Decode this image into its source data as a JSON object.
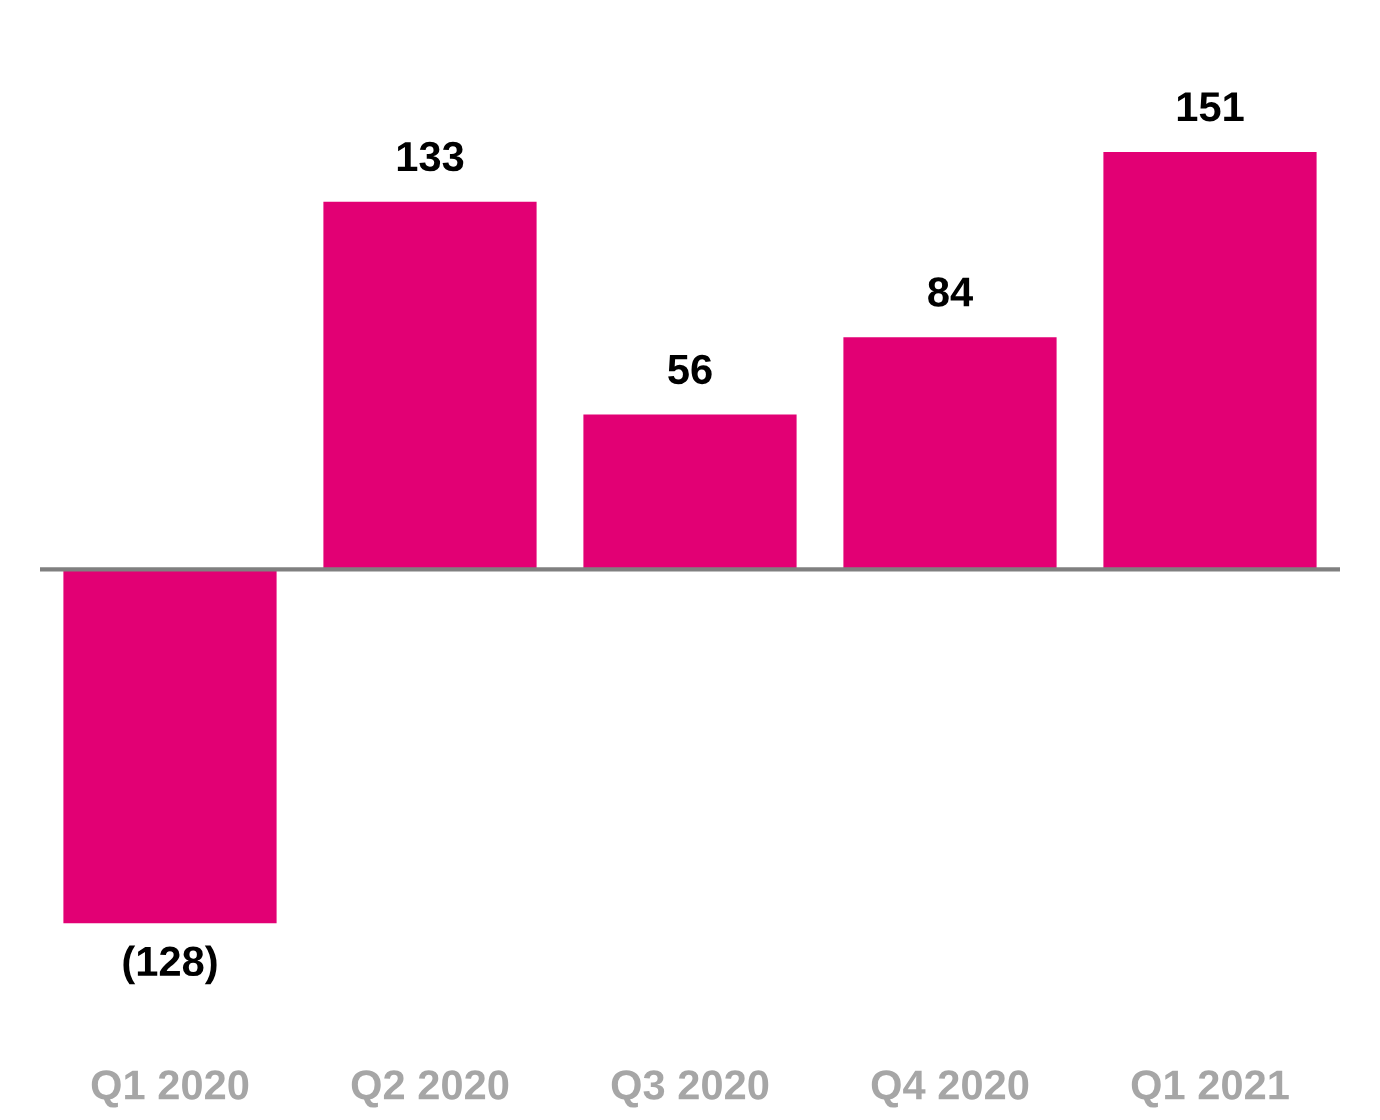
{
  "chart_data": {
    "type": "bar",
    "categories": [
      "Q1 2020",
      "Q2 2020",
      "Q3 2020",
      "Q4 2020",
      "Q1 2021"
    ],
    "values": [
      -128,
      133,
      56,
      84,
      151
    ],
    "value_labels": [
      "(128)",
      "133",
      "56",
      "84",
      "151"
    ],
    "color": "#e20074",
    "tick_labels": "x",
    "grid": false,
    "legend": false
  }
}
